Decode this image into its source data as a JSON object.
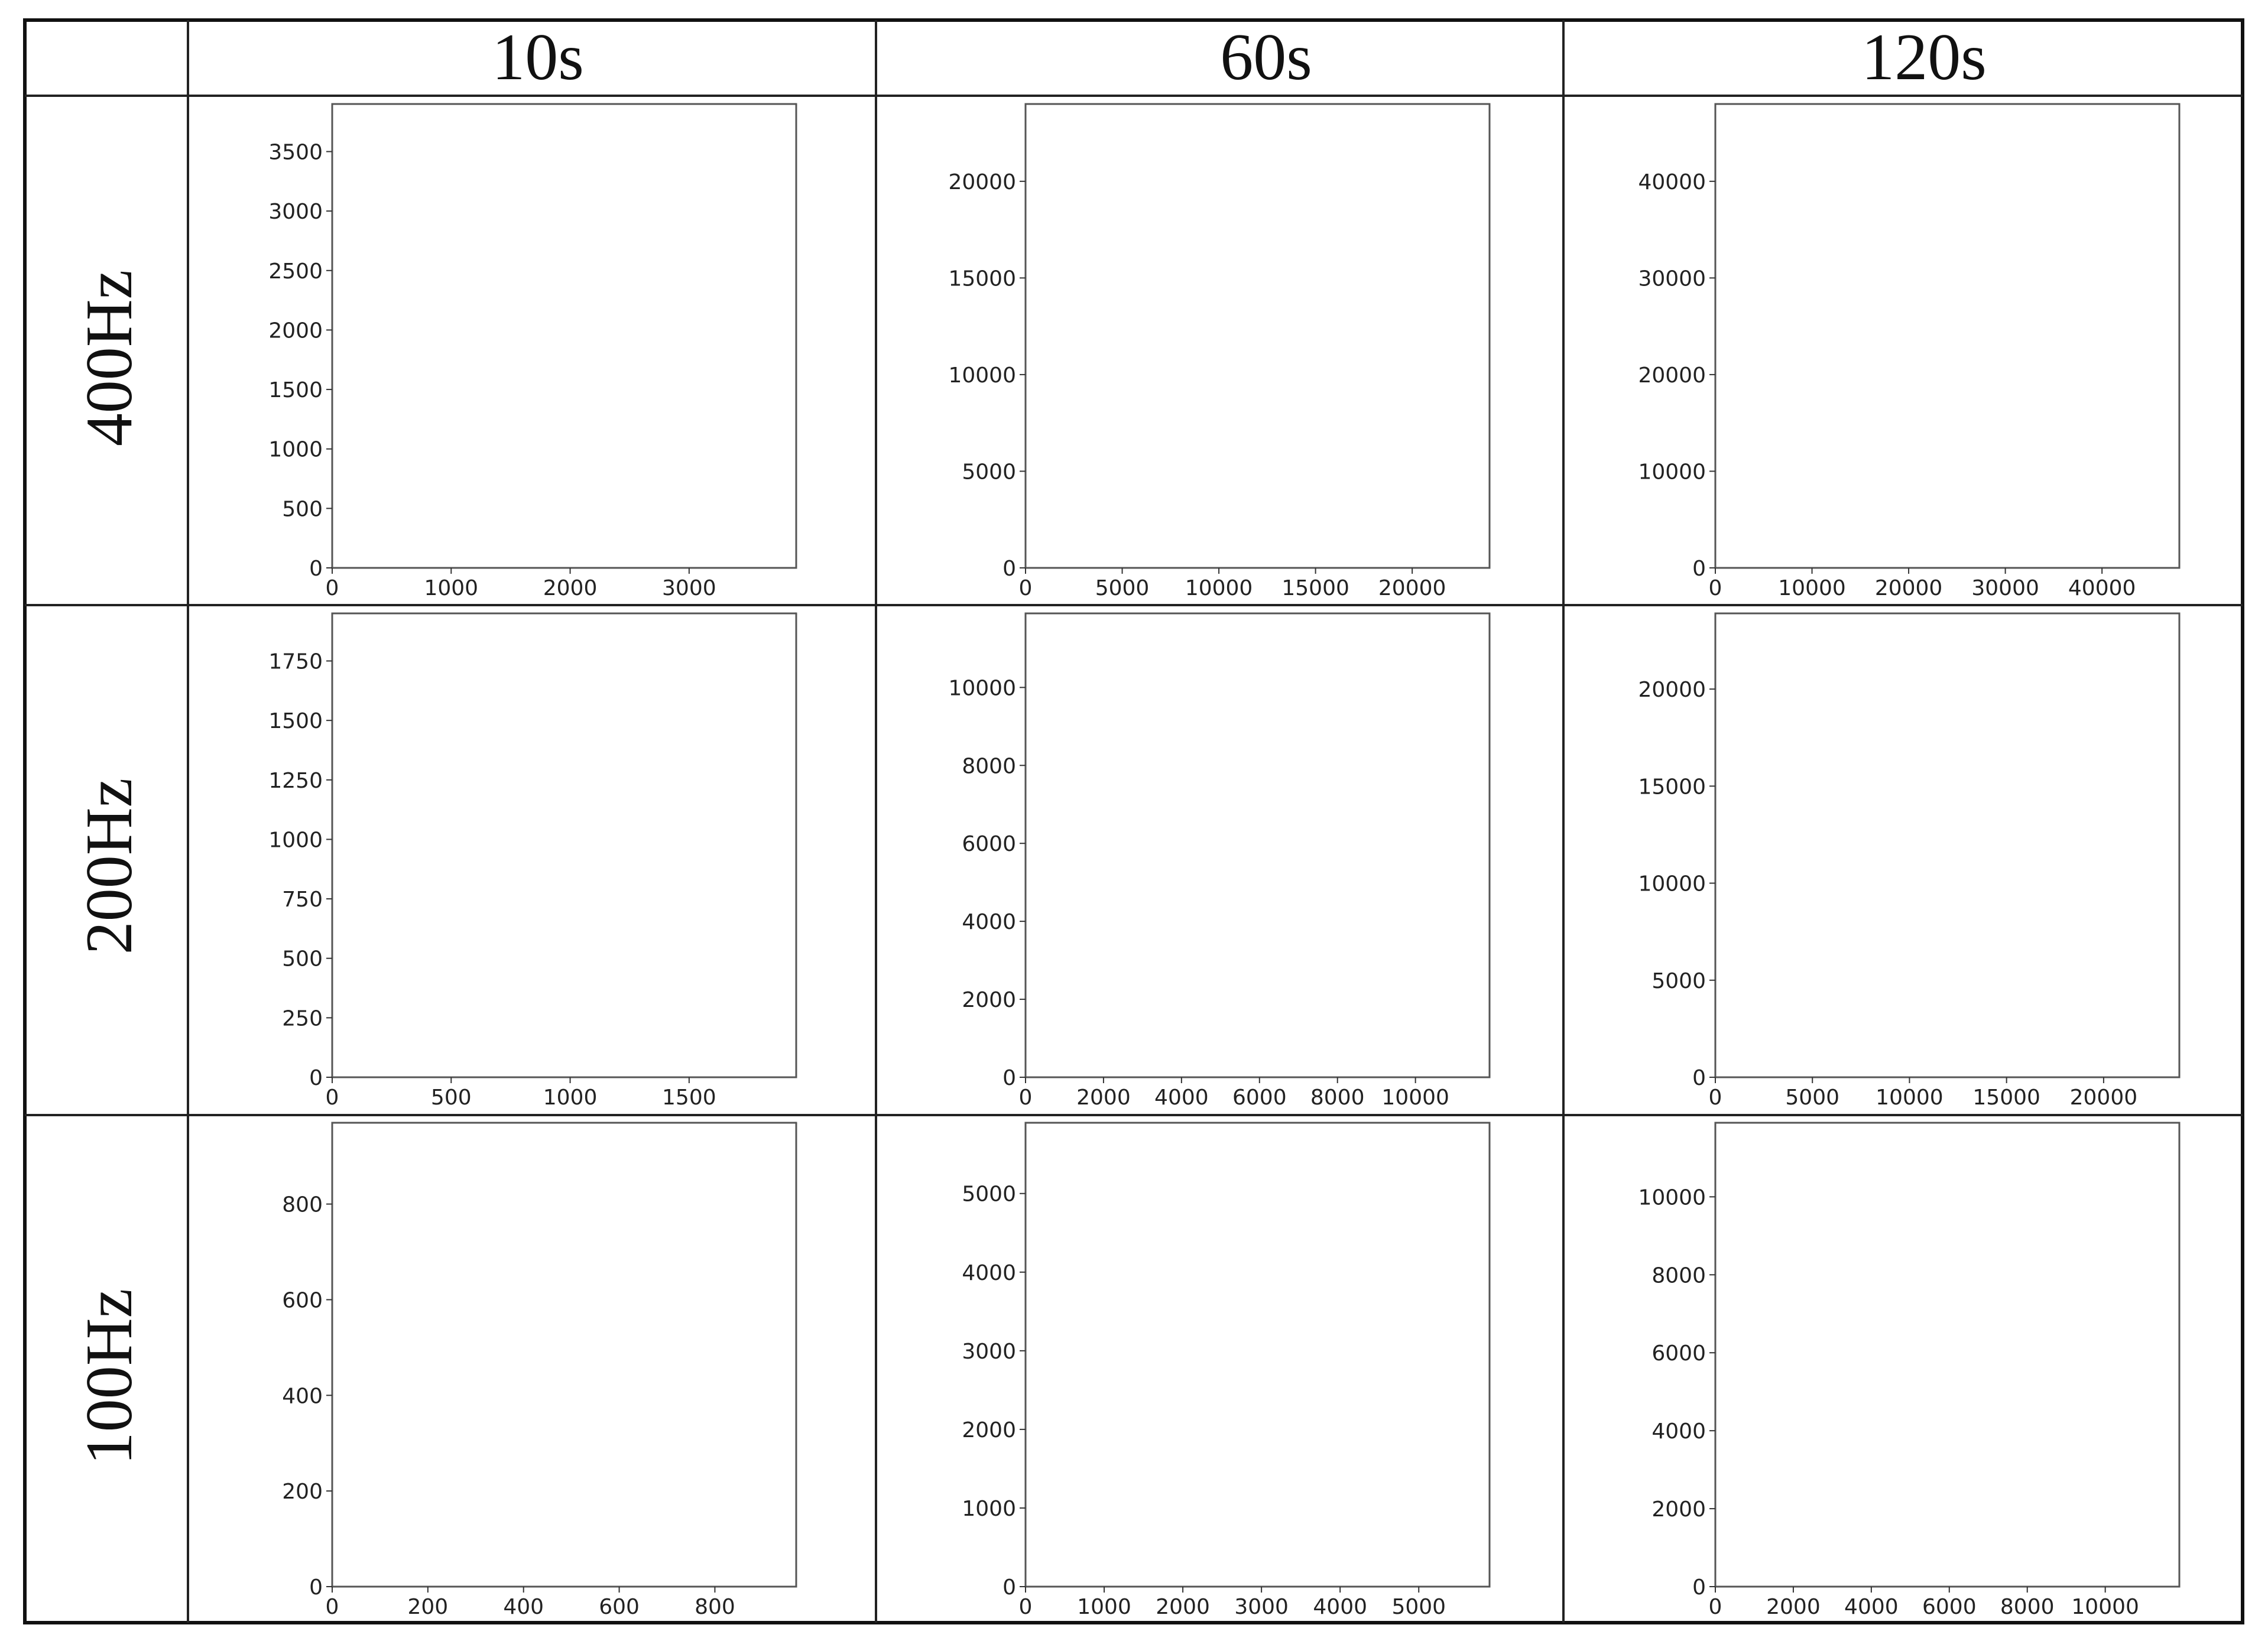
{
  "table": {
    "col_headers": [
      "10s",
      "60s",
      "120s"
    ],
    "row_headers": [
      "400Hz",
      "200Hz",
      "100Hz"
    ]
  },
  "chart_data": [
    {
      "type": "heatmap",
      "row": "400Hz",
      "col": "10s",
      "pattern": "diagonal-stripes",
      "xlim": [
        0,
        3900
      ],
      "ylim": [
        0,
        3900
      ],
      "xticks": [
        0,
        1000,
        2000,
        3000
      ],
      "yticks": [
        0,
        500,
        1000,
        1500,
        2000,
        2500,
        3000,
        3500
      ]
    },
    {
      "type": "heatmap",
      "row": "400Hz",
      "col": "60s",
      "pattern": "fine-grid",
      "xlim": [
        0,
        24000
      ],
      "ylim": [
        0,
        24000
      ],
      "xticks": [
        0,
        5000,
        10000,
        15000,
        20000
      ],
      "yticks": [
        0,
        5000,
        10000,
        15000,
        20000
      ]
    },
    {
      "type": "heatmap",
      "row": "400Hz",
      "col": "120s",
      "pattern": "faint-grid",
      "xlim": [
        0,
        48000
      ],
      "ylim": [
        0,
        48000
      ],
      "xticks": [
        0,
        10000,
        20000,
        30000,
        40000
      ],
      "yticks": [
        0,
        10000,
        20000,
        30000,
        40000
      ]
    },
    {
      "type": "heatmap",
      "row": "200Hz",
      "col": "10s",
      "pattern": "diagonal-stripes",
      "xlim": [
        0,
        1950
      ],
      "ylim": [
        0,
        1950
      ],
      "xticks": [
        0,
        500,
        1000,
        1500
      ],
      "yticks": [
        0,
        250,
        500,
        750,
        1000,
        1250,
        1500,
        1750
      ]
    },
    {
      "type": "heatmap",
      "row": "200Hz",
      "col": "60s",
      "pattern": "fine-grid",
      "xlim": [
        0,
        11900
      ],
      "ylim": [
        0,
        11900
      ],
      "xticks": [
        0,
        2000,
        4000,
        6000,
        8000,
        10000
      ],
      "yticks": [
        0,
        2000,
        4000,
        6000,
        8000,
        10000
      ]
    },
    {
      "type": "heatmap",
      "row": "200Hz",
      "col": "120s",
      "pattern": "faint-grid",
      "xlim": [
        0,
        23900
      ],
      "ylim": [
        0,
        23900
      ],
      "xticks": [
        0,
        5000,
        10000,
        15000,
        20000
      ],
      "yticks": [
        0,
        5000,
        10000,
        15000,
        20000
      ]
    },
    {
      "type": "heatmap",
      "row": "100Hz",
      "col": "10s",
      "pattern": "diagonal-stripes",
      "xlim": [
        0,
        970
      ],
      "ylim": [
        0,
        970
      ],
      "xticks": [
        0,
        200,
        400,
        600,
        800
      ],
      "yticks": [
        0,
        200,
        400,
        600,
        800
      ]
    },
    {
      "type": "heatmap",
      "row": "100Hz",
      "col": "60s",
      "pattern": "fine-grid",
      "xlim": [
        0,
        5900
      ],
      "ylim": [
        0,
        5900
      ],
      "xticks": [
        0,
        1000,
        2000,
        3000,
        4000,
        5000
      ],
      "yticks": [
        0,
        1000,
        2000,
        3000,
        4000,
        5000
      ]
    },
    {
      "type": "heatmap",
      "row": "100Hz",
      "col": "120s",
      "pattern": "faint-grid",
      "xlim": [
        0,
        11900
      ],
      "ylim": [
        0,
        11900
      ],
      "xticks": [
        0,
        2000,
        4000,
        6000,
        8000,
        10000
      ],
      "yticks": [
        0,
        2000,
        4000,
        6000,
        8000,
        10000
      ]
    }
  ]
}
